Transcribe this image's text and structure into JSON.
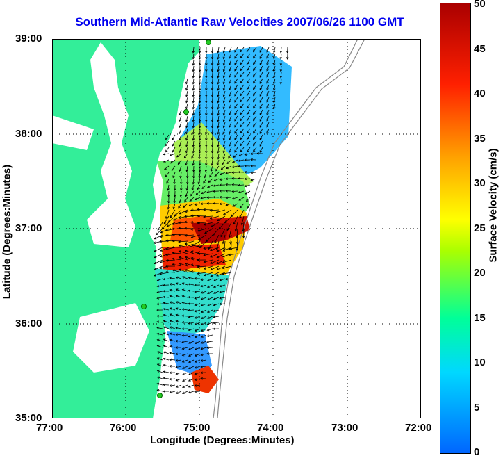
{
  "title": "Southern Mid-Atlantic Raw Velocities 2007/06/26 1100 GMT",
  "x_axis": {
    "label": "Longitude (Degrees:Minutes)",
    "ticks": [
      "77:00",
      "76:00",
      "75:00",
      "74:00",
      "73:00",
      "72:00"
    ]
  },
  "y_axis": {
    "label": "Latitude (Degrees:Minutes)",
    "ticks": [
      "39:00",
      "38:00",
      "37:00",
      "36:00",
      "35:00"
    ]
  },
  "colorbar": {
    "label": "Surface Velocity (cm/s)",
    "ticks": [
      "50",
      "45",
      "40",
      "35",
      "30",
      "25",
      "20",
      "15",
      "10",
      "5",
      "0"
    ],
    "range": [
      0,
      50
    ],
    "colors": {
      "low": "#0066ff",
      "mid": "#ffff00",
      "high": "#aa0000"
    }
  },
  "map": {
    "land_color": "#33ee99",
    "water_color": "#ffffff",
    "grid": "dotted",
    "station_color": "#22cc22",
    "vector_color": "#000000"
  }
}
